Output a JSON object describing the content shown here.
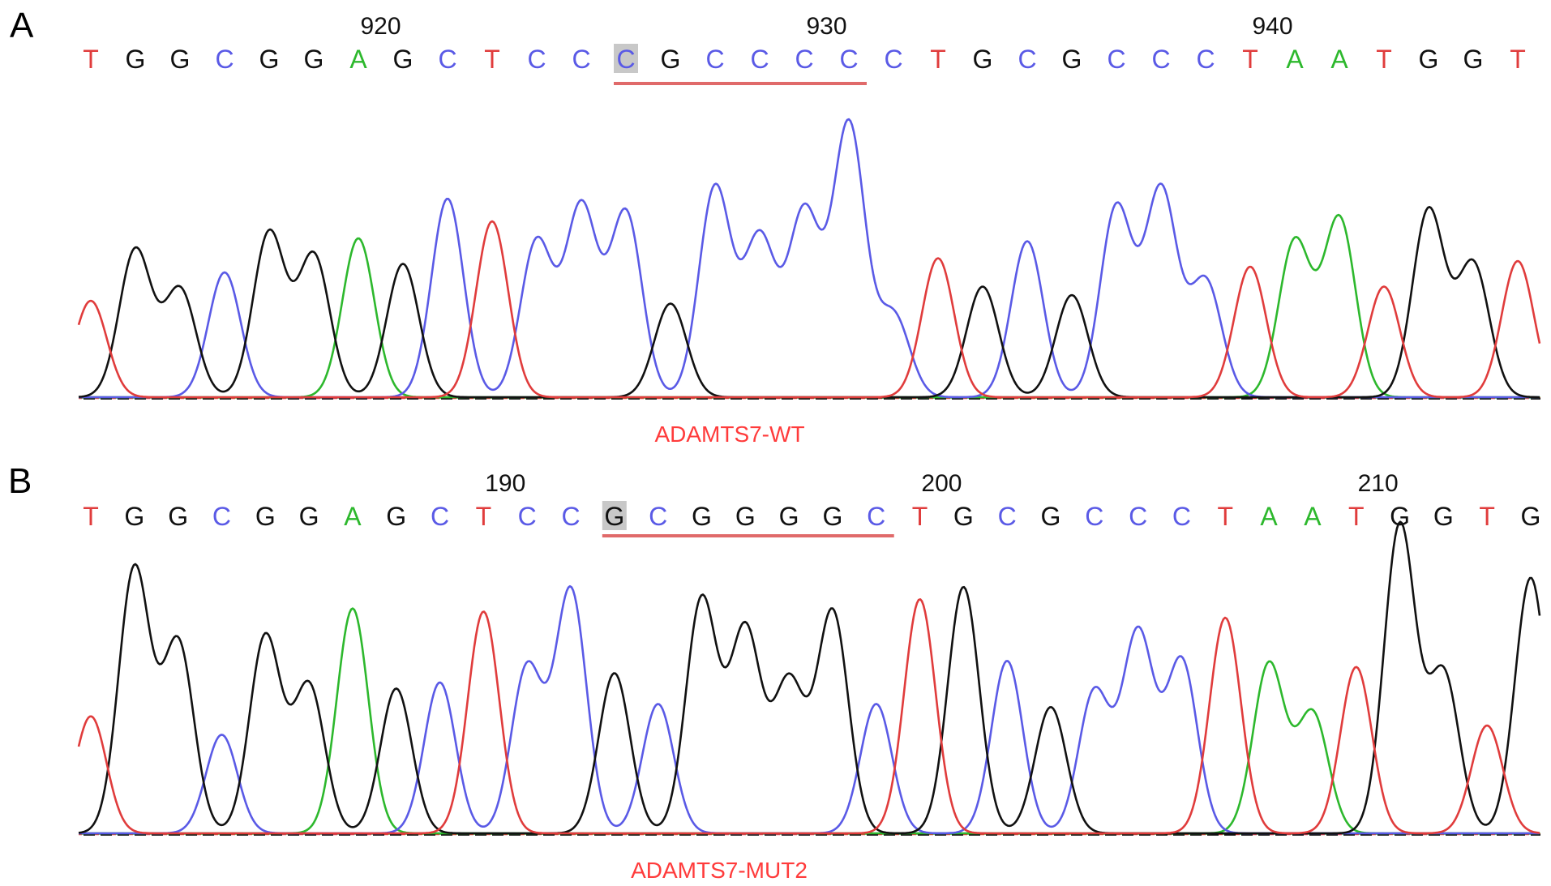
{
  "colors": {
    "A": "#2db82d",
    "C": "#5a5ae6",
    "G": "#111111",
    "T": "#e03c3c",
    "underline": "#e06a6a",
    "label": "#ff3b3b",
    "highlight": "#c8c8c8"
  },
  "chart_data": [
    {
      "type": "chromatogram",
      "panel_label": "A",
      "sample_label": "ADAMTS7-WT",
      "position_ticks": [
        {
          "label": "920",
          "at_base": 6.5
        },
        {
          "label": "930",
          "at_base": 16.5
        },
        {
          "label": "940",
          "at_base": 26.5
        }
      ],
      "sequence": [
        "T",
        "G",
        "G",
        "C",
        "G",
        "G",
        "A",
        "G",
        "C",
        "T",
        "C",
        "C",
        "C",
        "G",
        "C",
        "C",
        "C",
        "C",
        "C",
        "T",
        "G",
        "C",
        "G",
        "C",
        "C",
        "C",
        "T",
        "A",
        "A",
        "T",
        "G",
        "G",
        "T"
      ],
      "highlighted_base": 12,
      "underline_bases": [
        12,
        17
      ],
      "peak_heights": [
        0.34,
        0.52,
        0.38,
        0.44,
        0.58,
        0.5,
        0.56,
        0.47,
        0.7,
        0.62,
        0.55,
        0.67,
        0.65,
        0.33,
        0.74,
        0.56,
        0.65,
        0.96,
        0.29,
        0.49,
        0.39,
        0.55,
        0.36,
        0.67,
        0.73,
        0.41,
        0.46,
        0.55,
        0.63,
        0.39,
        0.66,
        0.47,
        0.48
      ]
    },
    {
      "type": "chromatogram",
      "panel_label": "B",
      "sample_label": "ADAMTS7-MUT2",
      "position_ticks": [
        {
          "label": "190",
          "at_base": 9.5
        },
        {
          "label": "200",
          "at_base": 19.5
        },
        {
          "label": "210",
          "at_base": 29.5
        }
      ],
      "sequence": [
        "T",
        "G",
        "G",
        "C",
        "G",
        "G",
        "A",
        "G",
        "C",
        "T",
        "C",
        "C",
        "G",
        "C",
        "G",
        "G",
        "G",
        "G",
        "C",
        "T",
        "G",
        "C",
        "G",
        "C",
        "C",
        "C",
        "T",
        "A",
        "A",
        "T",
        "G",
        "G",
        "T",
        "G"
      ],
      "highlighted_base": 12,
      "underline_bases": [
        12,
        18
      ],
      "peak_heights": [
        0.38,
        0.86,
        0.62,
        0.32,
        0.64,
        0.48,
        0.73,
        0.47,
        0.49,
        0.72,
        0.54,
        0.79,
        0.52,
        0.42,
        0.76,
        0.66,
        0.49,
        0.72,
        0.42,
        0.76,
        0.8,
        0.56,
        0.41,
        0.46,
        0.65,
        0.56,
        0.7,
        0.55,
        0.39,
        0.54,
        1.0,
        0.52,
        0.35,
        0.83
      ]
    }
  ]
}
